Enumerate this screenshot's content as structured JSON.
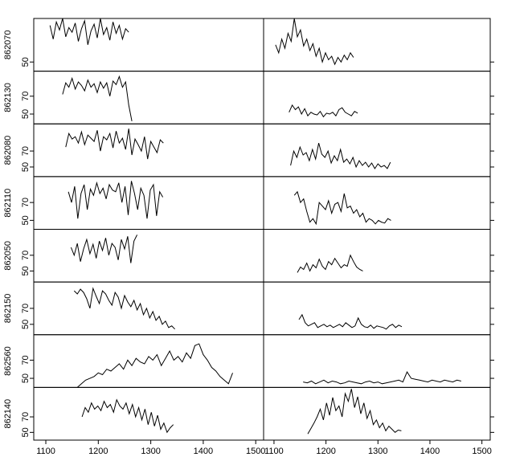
{
  "chart_data": [
    {
      "type": "line",
      "label": "862070",
      "xlim": [
        1077,
        1515
      ],
      "ylim": [
        42,
        88
      ],
      "yticks": [
        50
      ],
      "x": [
        1108,
        1114,
        1120,
        1126,
        1132,
        1138,
        1144,
        1150,
        1156,
        1162,
        1168,
        1174,
        1180,
        1186,
        1192,
        1198,
        1204,
        1210,
        1216,
        1222,
        1228,
        1234,
        1240,
        1246,
        1252,
        1258
      ],
      "values": [
        82,
        70,
        85,
        78,
        88,
        72,
        80,
        76,
        84,
        68,
        79,
        86,
        65,
        77,
        83,
        71,
        88,
        74,
        80,
        69,
        85,
        75,
        82,
        70,
        79,
        76
      ]
    },
    {
      "type": "line",
      "xlim": [
        1080,
        1516
      ],
      "ylim": [
        42,
        88
      ],
      "x": [
        1103,
        1109,
        1115,
        1121,
        1127,
        1133,
        1139,
        1145,
        1151,
        1157,
        1163,
        1169,
        1175,
        1181,
        1187,
        1193,
        1199,
        1205,
        1211,
        1217,
        1223,
        1229,
        1235,
        1241,
        1247,
        1253
      ],
      "values": [
        65,
        58,
        70,
        62,
        75,
        68,
        88,
        72,
        78,
        64,
        70,
        60,
        66,
        55,
        62,
        50,
        58,
        52,
        55,
        48,
        54,
        50,
        56,
        52,
        58,
        54
      ]
    },
    {
      "type": "line",
      "label": "862130",
      "xlim": [
        1077,
        1515
      ],
      "ylim": [
        39,
        98
      ],
      "yticks": [
        50,
        70
      ],
      "x": [
        1132,
        1138,
        1144,
        1150,
        1156,
        1162,
        1168,
        1174,
        1180,
        1186,
        1192,
        1198,
        1204,
        1210,
        1216,
        1222,
        1228,
        1234,
        1240,
        1246,
        1252,
        1258,
        1264
      ],
      "values": [
        72,
        85,
        80,
        90,
        78,
        86,
        82,
        76,
        88,
        80,
        84,
        74,
        86,
        79,
        85,
        70,
        87,
        83,
        92,
        80,
        86,
        60,
        42
      ]
    },
    {
      "type": "line",
      "xlim": [
        1080,
        1516
      ],
      "ylim": [
        39,
        98
      ],
      "x": [
        1129,
        1135,
        1141,
        1147,
        1153,
        1159,
        1165,
        1171,
        1177,
        1183,
        1189,
        1195,
        1201,
        1207,
        1213,
        1219,
        1225,
        1231,
        1237,
        1243,
        1249,
        1255,
        1261
      ],
      "values": [
        52,
        60,
        55,
        58,
        50,
        56,
        48,
        52,
        50,
        49,
        53,
        47,
        51,
        50,
        52,
        48,
        55,
        57,
        52,
        50,
        48,
        53,
        51
      ]
    },
    {
      "type": "line",
      "label": "862080",
      "xlim": [
        1077,
        1515
      ],
      "ylim": [
        38,
        104
      ],
      "yticks": [
        50,
        70
      ],
      "x": [
        1138,
        1144,
        1150,
        1156,
        1162,
        1168,
        1174,
        1180,
        1186,
        1192,
        1198,
        1204,
        1210,
        1216,
        1222,
        1228,
        1234,
        1240,
        1246,
        1252,
        1258,
        1264,
        1270,
        1276,
        1282,
        1288,
        1294,
        1300,
        1306,
        1312,
        1318,
        1324
      ],
      "values": [
        75,
        92,
        85,
        88,
        80,
        94,
        78,
        90,
        86,
        82,
        96,
        70,
        88,
        84,
        92,
        74,
        95,
        80,
        86,
        72,
        98,
        65,
        85,
        78,
        70,
        88,
        60,
        82,
        75,
        68,
        84,
        80
      ]
    },
    {
      "type": "line",
      "xlim": [
        1080,
        1516
      ],
      "ylim": [
        38,
        104
      ],
      "x": [
        1132,
        1138,
        1144,
        1150,
        1156,
        1162,
        1168,
        1174,
        1180,
        1186,
        1192,
        1198,
        1204,
        1210,
        1216,
        1222,
        1228,
        1234,
        1240,
        1246,
        1252,
        1258,
        1264,
        1270,
        1276,
        1282,
        1288,
        1294,
        1300,
        1306,
        1312,
        1318,
        1324
      ],
      "values": [
        52,
        70,
        62,
        75,
        65,
        68,
        58,
        72,
        60,
        80,
        66,
        62,
        70,
        55,
        64,
        58,
        72,
        56,
        60,
        54,
        62,
        50,
        58,
        52,
        56,
        50,
        55,
        48,
        54,
        50,
        52,
        48,
        56
      ]
    },
    {
      "type": "line",
      "label": "862110",
      "xlim": [
        1077,
        1515
      ],
      "ylim": [
        40,
        99
      ],
      "yticks": [
        50,
        70
      ],
      "x": [
        1143,
        1149,
        1155,
        1161,
        1167,
        1173,
        1179,
        1185,
        1191,
        1197,
        1203,
        1209,
        1215,
        1221,
        1227,
        1233,
        1239,
        1245,
        1251,
        1257,
        1263,
        1269,
        1275,
        1281,
        1287,
        1293,
        1299,
        1305,
        1311,
        1317,
        1323
      ],
      "values": [
        82,
        70,
        88,
        52,
        80,
        90,
        62,
        85,
        78,
        92,
        80,
        86,
        74,
        90,
        84,
        82,
        92,
        70,
        88,
        56,
        94,
        80,
        62,
        86,
        78,
        52,
        84,
        90,
        55,
        82,
        76
      ]
    },
    {
      "type": "line",
      "xlim": [
        1080,
        1516
      ],
      "ylim": [
        40,
        99
      ],
      "x": [
        1139,
        1145,
        1151,
        1157,
        1163,
        1169,
        1175,
        1181,
        1187,
        1193,
        1199,
        1205,
        1211,
        1217,
        1223,
        1229,
        1235,
        1241,
        1247,
        1253,
        1259,
        1265,
        1271,
        1277,
        1283,
        1289,
        1295,
        1301,
        1307,
        1313,
        1319,
        1325
      ],
      "values": [
        78,
        82,
        70,
        74,
        60,
        48,
        52,
        46,
        70,
        66,
        62,
        72,
        58,
        68,
        70,
        60,
        80,
        64,
        66,
        58,
        62,
        54,
        58,
        48,
        52,
        50,
        46,
        50,
        48,
        47,
        52,
        50
      ]
    },
    {
      "type": "line",
      "label": "862050",
      "xlim": [
        1077,
        1515
      ],
      "ylim": [
        36,
        103
      ],
      "yticks": [
        50,
        70
      ],
      "x": [
        1148,
        1154,
        1160,
        1166,
        1172,
        1178,
        1184,
        1190,
        1196,
        1202,
        1208,
        1214,
        1220,
        1226,
        1232,
        1238,
        1244,
        1250,
        1256,
        1262,
        1268,
        1274
      ],
      "values": [
        80,
        70,
        85,
        62,
        78,
        90,
        72,
        84,
        66,
        88,
        76,
        92,
        70,
        85,
        80,
        64,
        90,
        78,
        94,
        60,
        88,
        96
      ]
    },
    {
      "type": "line",
      "xlim": [
        1080,
        1516
      ],
      "ylim": [
        36,
        103
      ],
      "x": [
        1145,
        1151,
        1157,
        1163,
        1169,
        1175,
        1181,
        1187,
        1193,
        1199,
        1205,
        1211,
        1217,
        1223,
        1229,
        1235,
        1241,
        1247,
        1253,
        1259,
        1265,
        1271
      ],
      "values": [
        48,
        55,
        52,
        60,
        50,
        58,
        54,
        65,
        56,
        52,
        62,
        58,
        66,
        60,
        54,
        58,
        56,
        70,
        62,
        55,
        52,
        50
      ]
    },
    {
      "type": "line",
      "label": "862150",
      "xlim": [
        1077,
        1515
      ],
      "ylim": [
        37,
        103
      ],
      "yticks": [
        50,
        70
      ],
      "x": [
        1154,
        1160,
        1166,
        1172,
        1178,
        1184,
        1190,
        1196,
        1202,
        1208,
        1214,
        1220,
        1226,
        1232,
        1238,
        1244,
        1250,
        1256,
        1262,
        1268,
        1274,
        1280,
        1286,
        1292,
        1298,
        1304,
        1310,
        1316,
        1322,
        1328,
        1334,
        1340,
        1346
      ],
      "values": [
        92,
        88,
        94,
        90,
        82,
        70,
        95,
        85,
        76,
        92,
        88,
        80,
        74,
        90,
        84,
        70,
        86,
        78,
        72,
        80,
        68,
        76,
        62,
        70,
        58,
        66,
        55,
        60,
        50,
        54,
        46,
        48,
        44
      ]
    },
    {
      "type": "line",
      "xlim": [
        1080,
        1516
      ],
      "ylim": [
        37,
        103
      ],
      "x": [
        1148,
        1154,
        1160,
        1166,
        1172,
        1178,
        1184,
        1190,
        1196,
        1202,
        1208,
        1214,
        1220,
        1226,
        1232,
        1238,
        1244,
        1250,
        1256,
        1262,
        1268,
        1274,
        1280,
        1286,
        1292,
        1298,
        1304,
        1310,
        1316,
        1322,
        1328,
        1334,
        1340,
        1346
      ],
      "values": [
        56,
        62,
        52,
        48,
        50,
        52,
        46,
        48,
        50,
        47,
        49,
        46,
        48,
        50,
        47,
        52,
        49,
        46,
        48,
        58,
        50,
        47,
        46,
        49,
        45,
        48,
        47,
        46,
        44,
        48,
        50,
        46,
        49,
        47
      ]
    },
    {
      "type": "line",
      "label": "862560",
      "xlim": [
        1077,
        1515
      ],
      "ylim": [
        40,
        98
      ],
      "yticks": [
        50,
        70
      ],
      "x": [
        1160,
        1168,
        1176,
        1184,
        1192,
        1200,
        1208,
        1216,
        1224,
        1232,
        1240,
        1248,
        1256,
        1264,
        1272,
        1280,
        1288,
        1296,
        1304,
        1312,
        1320,
        1328,
        1336,
        1344,
        1352,
        1360,
        1368,
        1376,
        1384,
        1392,
        1400,
        1408,
        1416,
        1424,
        1432,
        1440,
        1448,
        1456
      ],
      "values": [
        40,
        44,
        48,
        50,
        52,
        56,
        54,
        60,
        58,
        62,
        66,
        60,
        70,
        64,
        72,
        68,
        66,
        74,
        70,
        76,
        64,
        72,
        80,
        70,
        74,
        68,
        78,
        72,
        86,
        88,
        76,
        70,
        62,
        58,
        52,
        48,
        44,
        56
      ]
    },
    {
      "type": "line",
      "xlim": [
        1080,
        1516
      ],
      "ylim": [
        40,
        98
      ],
      "x": [
        1156,
        1164,
        1172,
        1180,
        1188,
        1196,
        1204,
        1212,
        1220,
        1228,
        1236,
        1244,
        1252,
        1260,
        1268,
        1276,
        1284,
        1292,
        1300,
        1308,
        1316,
        1324,
        1332,
        1340,
        1348,
        1356,
        1364,
        1372,
        1380,
        1388,
        1396,
        1404,
        1412,
        1420,
        1428,
        1436,
        1444,
        1452,
        1460
      ],
      "values": [
        46,
        45,
        47,
        44,
        46,
        48,
        45,
        47,
        46,
        44,
        45,
        47,
        46,
        45,
        44,
        46,
        47,
        45,
        46,
        44,
        45,
        46,
        47,
        48,
        46,
        57,
        50,
        49,
        48,
        47,
        46,
        48,
        47,
        46,
        48,
        47,
        46,
        48,
        47
      ]
    },
    {
      "type": "line",
      "label": "862140",
      "xlim": [
        1077,
        1515
      ],
      "ylim": [
        40,
        108
      ],
      "yticks": [
        50,
        70
      ],
      "xticks": [
        1100,
        1200,
        1300,
        1400,
        1500
      ],
      "x": [
        1169,
        1175,
        1181,
        1187,
        1193,
        1199,
        1205,
        1211,
        1217,
        1223,
        1229,
        1235,
        1241,
        1247,
        1253,
        1259,
        1265,
        1271,
        1277,
        1283,
        1289,
        1295,
        1301,
        1307,
        1313,
        1319,
        1325,
        1331,
        1337,
        1343
      ],
      "values": [
        70,
        82,
        76,
        88,
        80,
        84,
        78,
        90,
        82,
        86,
        76,
        92,
        84,
        80,
        88,
        74,
        86,
        70,
        82,
        66,
        80,
        60,
        76,
        58,
        72,
        54,
        62,
        50,
        56,
        60
      ]
    },
    {
      "type": "line",
      "xlim": [
        1080,
        1516
      ],
      "ylim": [
        40,
        108
      ],
      "xticks": [
        1100,
        1200,
        1300,
        1400,
        1500
      ],
      "x": [
        1165,
        1171,
        1177,
        1183,
        1189,
        1195,
        1201,
        1207,
        1213,
        1219,
        1225,
        1231,
        1237,
        1243,
        1249,
        1255,
        1261,
        1267,
        1273,
        1279,
        1285,
        1291,
        1297,
        1303,
        1309,
        1315,
        1321,
        1327,
        1333,
        1339,
        1345
      ],
      "values": [
        48,
        55,
        62,
        70,
        80,
        66,
        88,
        72,
        95,
        78,
        84,
        70,
        100,
        90,
        106,
        82,
        96,
        74,
        88,
        68,
        78,
        60,
        66,
        56,
        62,
        52,
        58,
        54,
        50,
        53,
        52
      ]
    }
  ]
}
